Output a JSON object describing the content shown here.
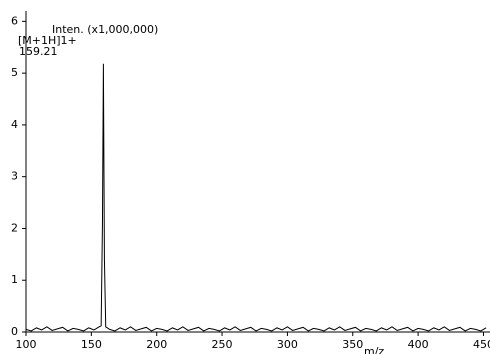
{
  "chart_data": {
    "type": "line",
    "y_label": "Inten. (x1,000,000)",
    "x_label": "m/z",
    "annotations": [
      "[M+1H]1+",
      "159.21"
    ],
    "color": "#000000",
    "x": [
      100,
      104,
      108,
      112,
      116,
      120,
      124,
      128,
      132,
      136,
      140,
      144,
      148,
      152,
      156,
      157.5,
      158.5,
      159.21,
      160,
      161,
      164,
      168,
      172,
      176,
      180,
      184,
      188,
      192,
      196,
      200,
      204,
      208,
      212,
      216,
      220,
      224,
      228,
      232,
      236,
      240,
      244,
      248,
      252,
      256,
      260,
      264,
      268,
      272,
      276,
      280,
      284,
      288,
      292,
      296,
      300,
      304,
      308,
      312,
      316,
      320,
      324,
      328,
      332,
      336,
      340,
      344,
      348,
      352,
      356,
      360,
      364,
      368,
      372,
      376,
      380,
      384,
      388,
      392,
      396,
      400,
      404,
      408,
      412,
      416,
      420,
      424,
      428,
      432,
      436,
      440,
      444,
      448,
      452
    ],
    "values": [
      0.05,
      0.02,
      0.08,
      0.04,
      0.1,
      0.03,
      0.06,
      0.09,
      0.02,
      0.07,
      0.05,
      0.02,
      0.08,
      0.04,
      0.1,
      0.12,
      2.1,
      5.18,
      1.4,
      0.1,
      0.05,
      0.02,
      0.08,
      0.04,
      0.1,
      0.03,
      0.06,
      0.09,
      0.02,
      0.07,
      0.05,
      0.02,
      0.08,
      0.04,
      0.1,
      0.03,
      0.06,
      0.09,
      0.02,
      0.07,
      0.05,
      0.02,
      0.08,
      0.04,
      0.1,
      0.03,
      0.06,
      0.09,
      0.02,
      0.07,
      0.05,
      0.02,
      0.08,
      0.04,
      0.1,
      0.03,
      0.06,
      0.09,
      0.02,
      0.07,
      0.05,
      0.02,
      0.08,
      0.04,
      0.1,
      0.03,
      0.06,
      0.09,
      0.02,
      0.07,
      0.05,
      0.02,
      0.08,
      0.04,
      0.1,
      0.03,
      0.06,
      0.09,
      0.02,
      0.07,
      0.05,
      0.02,
      0.08,
      0.04,
      0.1,
      0.03,
      0.06,
      0.09,
      0.02,
      0.07,
      0.05,
      0.02,
      0.08
    ],
    "xlim": [
      100,
      455
    ],
    "xticks": [
      100,
      150,
      200,
      250,
      300,
      350,
      400,
      450
    ],
    "ylim": [
      0,
      6.2
    ],
    "yticks": [
      0,
      1,
      2,
      3,
      4,
      5,
      6
    ]
  }
}
